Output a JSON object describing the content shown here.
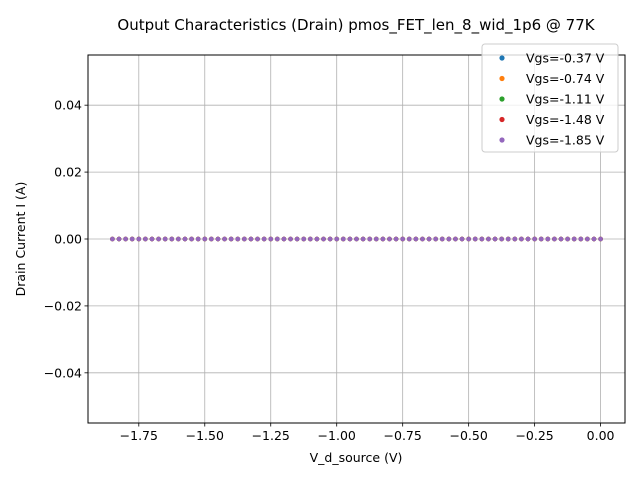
{
  "chart_data": {
    "type": "scatter",
    "title": "Output Characteristics (Drain) pmos_FET_len_8_wid_1p6 @ 77K",
    "xlabel": "V_d_source (V)",
    "ylabel": "Drain Current I (A)",
    "xlim": [
      -1.9425,
      0.0925
    ],
    "ylim": [
      -0.055,
      0.055
    ],
    "grid": true,
    "legend_position": "top-right",
    "x_ticks": [
      -1.75,
      -1.5,
      -1.25,
      -1.0,
      -0.75,
      -0.5,
      -0.25,
      0.0
    ],
    "x_tick_labels": [
      "−1.75",
      "−1.50",
      "−1.25",
      "−1.00",
      "−0.75",
      "−0.50",
      "−0.25",
      "0.00"
    ],
    "y_ticks": [
      -0.04,
      -0.02,
      0.0,
      0.02,
      0.04
    ],
    "y_tick_labels": [
      "−0.04",
      "−0.02",
      "0.00",
      "0.02",
      "0.04"
    ],
    "x_range": [
      -1.85,
      0.0
    ],
    "points_per_series": 75,
    "series": [
      {
        "name": "Vgs=-0.37 V",
        "color": "#1f77b4",
        "y_value": 0.0
      },
      {
        "name": "Vgs=-0.74 V",
        "color": "#ff7f0e",
        "y_value": 0.0
      },
      {
        "name": "Vgs=-1.11 V",
        "color": "#2ca02c",
        "y_value": 0.0
      },
      {
        "name": "Vgs=-1.48 V",
        "color": "#d62728",
        "y_value": 0.0
      },
      {
        "name": "Vgs=-1.85 V",
        "color": "#9467bd",
        "y_value": 0.0
      }
    ]
  }
}
